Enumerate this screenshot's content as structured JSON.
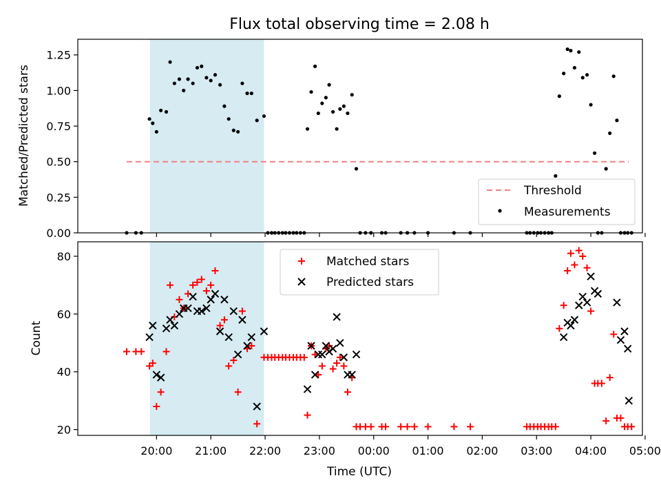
{
  "figure": {
    "title": "Flux total observing time = 2.08 h"
  },
  "colors": {
    "threshold": "#f08080",
    "measurement": "#000000",
    "matched": "#ff0000",
    "predicted": "#000000",
    "highlight": "#add8e6"
  },
  "chart_data": [
    {
      "type": "scatter",
      "panel": "top",
      "ylabel": "Matched/Predicted stars",
      "xlabel": "",
      "ylim": [
        0,
        1.36
      ],
      "y_ticks": [
        "0.00",
        "0.25",
        "0.50",
        "0.75",
        "1.00",
        "1.25"
      ],
      "x_unit": "hours after 19:00 UTC",
      "xlim": [
        -0.45,
        9.95
      ],
      "highlight_span": [
        0.88,
        2.98
      ],
      "threshold": {
        "label": "Threshold",
        "value": 0.5,
        "x_range": [
          0.45,
          9.7
        ]
      },
      "series": [
        {
          "name": "Measurements",
          "x": [
            0.45,
            0.62,
            0.72,
            0.87,
            0.93,
            1.0,
            1.08,
            1.18,
            1.25,
            1.33,
            1.42,
            1.5,
            1.58,
            1.67,
            1.75,
            1.83,
            1.92,
            2.0,
            2.08,
            2.17,
            2.25,
            2.33,
            2.42,
            2.5,
            2.58,
            2.67,
            2.75,
            2.85,
            2.98,
            3.05,
            3.12,
            3.18,
            3.25,
            3.32,
            3.38,
            3.45,
            3.52,
            3.58,
            3.65,
            3.72,
            3.78,
            3.85,
            3.92,
            3.98,
            4.05,
            4.12,
            4.18,
            4.25,
            4.32,
            4.38,
            4.45,
            4.52,
            4.6,
            4.68,
            4.75,
            4.85,
            4.95,
            5.15,
            5.22,
            5.5,
            5.62,
            5.75,
            6.0,
            6.48,
            6.78,
            7.82,
            7.88,
            7.95,
            8.02,
            8.08,
            8.15,
            8.22,
            8.28,
            8.35,
            8.42,
            8.5,
            8.57,
            8.63,
            8.7,
            8.78,
            8.85,
            8.93,
            9.0,
            9.07,
            9.13,
            9.2,
            9.28,
            9.35,
            9.42,
            9.48,
            9.55,
            9.62,
            9.68,
            9.75
          ],
          "y": [
            0.0,
            0.0,
            0.0,
            0.8,
            0.77,
            0.71,
            0.86,
            0.85,
            1.2,
            1.05,
            1.08,
            1.0,
            1.08,
            1.05,
            1.16,
            1.17,
            1.09,
            1.07,
            1.11,
            1.04,
            0.89,
            0.8,
            0.72,
            0.71,
            1.05,
            0.98,
            0.98,
            0.79,
            0.82,
            0.0,
            0.0,
            0.0,
            0.0,
            0.0,
            0.0,
            0.0,
            0.0,
            0.0,
            0.0,
            0.0,
            0.73,
            0.99,
            1.17,
            0.84,
            0.91,
            0.95,
            1.04,
            0.85,
            0.73,
            0.87,
            0.89,
            0.84,
            0.97,
            0.45,
            0.0,
            0.0,
            0.0,
            0.0,
            0.0,
            0.0,
            0.0,
            0.0,
            0.0,
            0.0,
            0.0,
            0.0,
            0.0,
            0.0,
            0.0,
            0.0,
            0.0,
            0.0,
            0.0,
            0.4,
            0.96,
            1.12,
            1.29,
            1.28,
            1.16,
            1.27,
            1.09,
            1.11,
            0.9,
            0.56,
            0.0,
            0.0,
            0.45,
            0.7,
            1.1,
            0.79,
            0.0,
            0.0,
            0.0,
            0.0
          ]
        }
      ]
    },
    {
      "type": "scatter",
      "panel": "bottom",
      "ylabel": "Count",
      "xlabel": "Time (UTC)",
      "ylim": [
        18,
        85
      ],
      "y_ticks": [
        "20",
        "40",
        "60",
        "80"
      ],
      "x_unit": "hours after 19:00 UTC",
      "xlim": [
        -0.45,
        9.95
      ],
      "x_ticks": [
        "20:00",
        "21:00",
        "22:00",
        "23:00",
        "00:00",
        "01:00",
        "02:00",
        "03:00",
        "04:00",
        "05:00"
      ],
      "highlight_span": [
        0.88,
        2.98
      ],
      "series": [
        {
          "name": "Matched stars",
          "marker": "plus",
          "x": [
            0.45,
            0.62,
            0.72,
            0.87,
            0.93,
            1.0,
            1.08,
            1.18,
            1.25,
            1.33,
            1.42,
            1.5,
            1.58,
            1.67,
            1.75,
            1.83,
            1.92,
            2.0,
            2.08,
            2.17,
            2.25,
            2.33,
            2.42,
            2.5,
            2.58,
            2.67,
            2.75,
            2.85,
            2.98,
            3.05,
            3.12,
            3.18,
            3.25,
            3.32,
            3.38,
            3.45,
            3.52,
            3.58,
            3.65,
            3.72,
            3.78,
            3.85,
            3.92,
            3.98,
            4.05,
            4.12,
            4.18,
            4.25,
            4.32,
            4.38,
            4.45,
            4.52,
            4.6,
            4.68,
            4.75,
            4.85,
            4.95,
            5.15,
            5.22,
            5.5,
            5.62,
            5.75,
            6.0,
            6.48,
            6.78,
            7.82,
            7.88,
            7.95,
            8.02,
            8.08,
            8.15,
            8.22,
            8.28,
            8.35,
            8.42,
            8.5,
            8.57,
            8.63,
            8.7,
            8.78,
            8.85,
            8.93,
            9.0,
            9.07,
            9.13,
            9.2,
            9.28,
            9.35,
            9.42,
            9.48,
            9.55,
            9.62,
            9.68,
            9.75
          ],
          "y": [
            47,
            47,
            47,
            42,
            43,
            28,
            33,
            47,
            70,
            59,
            65,
            62,
            67,
            70,
            71,
            72,
            68,
            70,
            75,
            56,
            58,
            42,
            44,
            33,
            61,
            48,
            49,
            22,
            45,
            45,
            45,
            45,
            45,
            45,
            45,
            45,
            45,
            45,
            45,
            45,
            25,
            49,
            46,
            39,
            42,
            48,
            49,
            41,
            43,
            45,
            42,
            33,
            38,
            21,
            21,
            21,
            21,
            21,
            21,
            21,
            21,
            21,
            21,
            21,
            21,
            21,
            21,
            21,
            21,
            21,
            21,
            21,
            21,
            21,
            55,
            63,
            75,
            81,
            77,
            82,
            80,
            76,
            61,
            36,
            36,
            36,
            23,
            38,
            53,
            24,
            24,
            21,
            21,
            21
          ]
        },
        {
          "name": "Predicted stars",
          "marker": "x",
          "x": [
            0.87,
            0.93,
            1.0,
            1.08,
            1.18,
            1.25,
            1.33,
            1.42,
            1.5,
            1.58,
            1.67,
            1.75,
            1.83,
            1.92,
            2.0,
            2.08,
            2.17,
            2.25,
            2.33,
            2.42,
            2.5,
            2.58,
            2.67,
            2.75,
            2.85,
            2.98,
            3.78,
            3.85,
            3.92,
            3.98,
            4.05,
            4.12,
            4.18,
            4.25,
            4.32,
            4.38,
            4.45,
            4.52,
            4.6,
            4.68,
            8.5,
            8.57,
            8.63,
            8.7,
            8.78,
            8.85,
            8.93,
            9.0,
            9.07,
            9.13,
            9.48,
            9.55,
            9.62,
            9.68
          ],
          "y": [
            52,
            56,
            39,
            38,
            55,
            58,
            56,
            60,
            62,
            62,
            66,
            61,
            61,
            62,
            65,
            67,
            54,
            65,
            52,
            61,
            46,
            58,
            49,
            52,
            28,
            54,
            34,
            49,
            39,
            46,
            46,
            49,
            47,
            48,
            59,
            50,
            45,
            39,
            39,
            46,
            52,
            57,
            56,
            58,
            63,
            66,
            64,
            73,
            68,
            67,
            64,
            51,
            54,
            48
          ]
        }
      ],
      "extra_predicted": {
        "x": [
          9.7
        ],
        "y": [
          30
        ]
      }
    }
  ],
  "legends": {
    "top": [
      "Threshold",
      "Measurements"
    ],
    "bottom": [
      "Matched stars",
      "Predicted stars"
    ]
  }
}
